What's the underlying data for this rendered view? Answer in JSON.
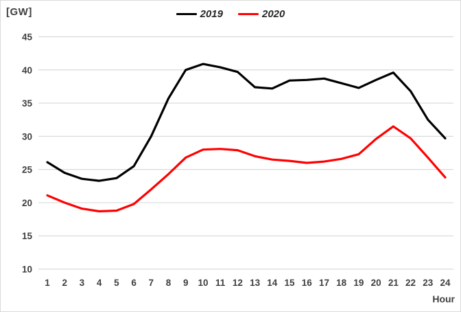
{
  "chart": {
    "unit_label": "[GW]",
    "x_axis_title": "Hour"
  },
  "chart_data": {
    "type": "line",
    "title": "",
    "xlabel": "Hour",
    "ylabel": "[GW]",
    "x": [
      1,
      2,
      3,
      4,
      5,
      6,
      7,
      8,
      9,
      10,
      11,
      12,
      13,
      14,
      15,
      16,
      17,
      18,
      19,
      20,
      21,
      22,
      23,
      24
    ],
    "series": [
      {
        "name": "2019",
        "color": "#000000",
        "values": [
          26.1,
          24.5,
          23.6,
          23.3,
          23.7,
          25.5,
          30.0,
          35.7,
          40.0,
          40.9,
          40.4,
          39.7,
          37.4,
          37.2,
          38.4,
          38.5,
          38.7,
          38.0,
          37.3,
          38.5,
          39.6,
          36.8,
          32.5,
          29.7
        ]
      },
      {
        "name": "2020",
        "color": "#ff0000",
        "values": [
          21.1,
          20.0,
          19.1,
          18.7,
          18.8,
          19.8,
          22.0,
          24.3,
          26.8,
          28.0,
          28.1,
          27.9,
          27.0,
          26.5,
          26.3,
          26.0,
          26.2,
          26.6,
          27.3,
          29.6,
          31.5,
          29.7,
          26.8,
          23.8
        ]
      }
    ],
    "ylim": [
      10,
      45
    ],
    "y_ticks": [
      45,
      40,
      35,
      30,
      25,
      20,
      15,
      10
    ],
    "grid": "horizontal",
    "grid_color": "#d9d9d9",
    "tick_color": "#3f3f3f",
    "legend_position": "top-center"
  }
}
